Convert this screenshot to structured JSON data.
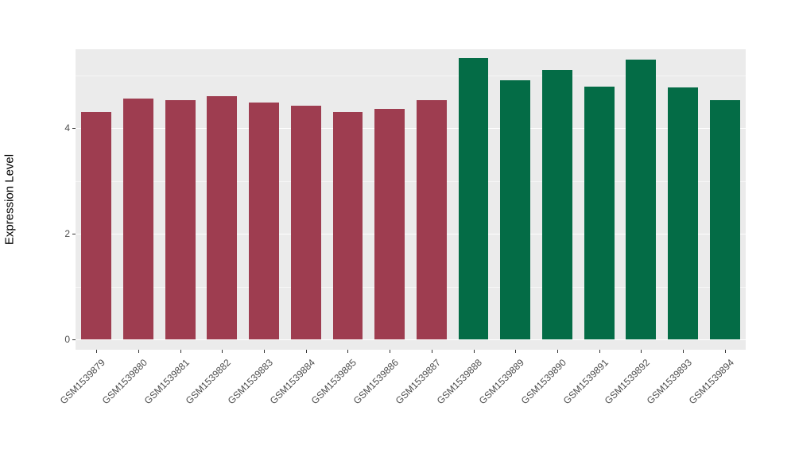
{
  "chart_data": {
    "type": "bar",
    "title": "",
    "xlabel": "",
    "ylabel": "Expression Level",
    "categories": [
      "GSM1539879",
      "GSM1539880",
      "GSM1539881",
      "GSM1539882",
      "GSM1539883",
      "GSM1539884",
      "GSM1539885",
      "GSM1539886",
      "GSM1539887",
      "GSM1539888",
      "GSM1539889",
      "GSM1539890",
      "GSM1539891",
      "GSM1539892",
      "GSM1539893",
      "GSM1539894"
    ],
    "values": [
      4.3,
      4.55,
      4.52,
      4.6,
      4.48,
      4.42,
      4.3,
      4.36,
      4.52,
      5.32,
      4.9,
      5.1,
      4.78,
      5.3,
      4.76,
      4.52
    ],
    "bar_colors": [
      "#9e3d50",
      "#9e3d50",
      "#9e3d50",
      "#9e3d50",
      "#9e3d50",
      "#9e3d50",
      "#9e3d50",
      "#9e3d50",
      "#9e3d50",
      "#046c46",
      "#046c46",
      "#046c46",
      "#046c46",
      "#046c46",
      "#046c46",
      "#046c46"
    ],
    "group_colors": {
      "group_left": "#9e3d50",
      "group_right": "#046c46"
    },
    "yticks": [
      0,
      2,
      4
    ],
    "yticks_minor": [
      1,
      3,
      5
    ],
    "ylim": [
      0,
      5.6
    ],
    "grid": "on",
    "legend": "none",
    "panel_background": "#ebebeb",
    "gridline_color": "#ffffff",
    "axis_text_color": "#4d4d4d"
  }
}
